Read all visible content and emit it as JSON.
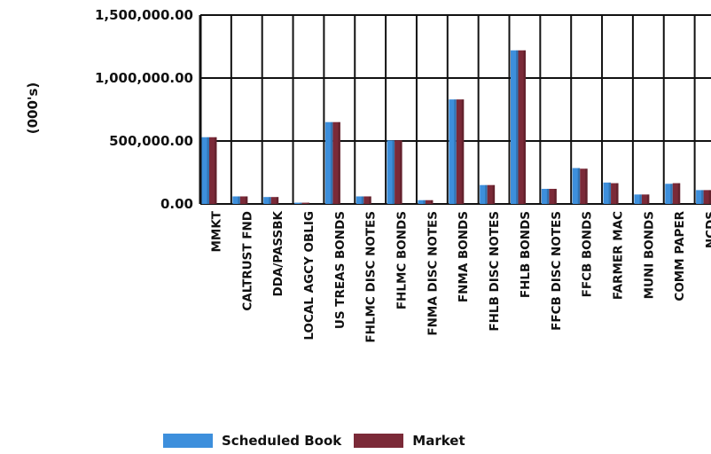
{
  "chart_data": {
    "type": "bar",
    "ylabel": "(000's)",
    "ylim": [
      0,
      1500000
    ],
    "yticks": [
      "0.00",
      "500,000.00",
      "1,000,000.00",
      "1,500,000.00"
    ],
    "ytick_values": [
      0,
      500000,
      1000000,
      1500000
    ],
    "grid": true,
    "legend_position": "bottom",
    "categories": [
      "MMKT",
      "CALTRUST FND",
      "DDA/PASSBK",
      "LOCAL AGCY OBLIG",
      "US TREAS BONDS",
      "FHLMC DISC NOTES",
      "FHLMC BONDS",
      "FNMA DISC NOTES",
      "FNMA BONDS",
      "FHLB DISC NOTES",
      "FHLB BONDS",
      "FFCB DISC NOTES",
      "FFCB BONDS",
      "FARMER MAC",
      "MUNI BONDS",
      "COMM PAPER",
      "NCDS"
    ],
    "series": [
      {
        "name": "Scheduled Book",
        "color": "#3d8fdc",
        "values": [
          530000,
          60000,
          55000,
          10000,
          650000,
          60000,
          505000,
          30000,
          830000,
          150000,
          1220000,
          120000,
          285000,
          170000,
          75000,
          160000,
          110000
        ]
      },
      {
        "name": "Market",
        "color": "#7b2a38",
        "values": [
          530000,
          60000,
          55000,
          10000,
          650000,
          60000,
          505000,
          30000,
          830000,
          150000,
          1220000,
          120000,
          280000,
          165000,
          75000,
          165000,
          110000
        ]
      }
    ]
  }
}
